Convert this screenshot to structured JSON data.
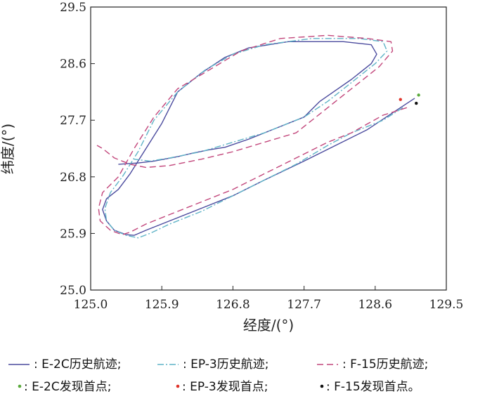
{
  "chart_data": {
    "type": "line",
    "xlabel": "经度/(°)",
    "ylabel": "纬度/(°)",
    "xlim": [
      125.0,
      129.5
    ],
    "ylim": [
      25.0,
      29.5
    ],
    "x_ticks": [
      "125.0",
      "125.9",
      "126.8",
      "127.7",
      "128.6",
      "129.5"
    ],
    "y_ticks": [
      "25.0",
      "25.9",
      "26.8",
      "27.7",
      "28.6",
      "29.5"
    ],
    "grid": false,
    "legend_position": "bottom",
    "series": [
      {
        "name": "E-2C历史航迹",
        "color": "#4b4b9e",
        "style": "solid",
        "points": [
          [
            129.1,
            28.05
          ],
          [
            128.8,
            27.8
          ],
          [
            128.5,
            27.55
          ],
          [
            128.1,
            27.3
          ],
          [
            127.7,
            27.05
          ],
          [
            127.2,
            26.75
          ],
          [
            126.8,
            26.5
          ],
          [
            126.4,
            26.3
          ],
          [
            126.0,
            26.1
          ],
          [
            125.7,
            25.95
          ],
          [
            125.55,
            25.87
          ],
          [
            125.45,
            25.88
          ],
          [
            125.3,
            25.95
          ],
          [
            125.2,
            26.1
          ],
          [
            125.15,
            26.28
          ],
          [
            125.2,
            26.45
          ],
          [
            125.35,
            26.6
          ],
          [
            125.5,
            26.85
          ],
          [
            125.7,
            27.25
          ],
          [
            125.9,
            27.65
          ],
          [
            126.1,
            28.15
          ],
          [
            126.4,
            28.45
          ],
          [
            126.7,
            28.7
          ],
          [
            127.0,
            28.85
          ],
          [
            127.5,
            28.95
          ],
          [
            128.2,
            28.95
          ],
          [
            128.55,
            28.9
          ],
          [
            128.62,
            28.75
          ],
          [
            128.55,
            28.6
          ],
          [
            128.3,
            28.35
          ],
          [
            127.9,
            28.0
          ],
          [
            127.7,
            27.75
          ],
          [
            127.3,
            27.55
          ],
          [
            127.0,
            27.4
          ],
          [
            126.7,
            27.27
          ],
          [
            126.5,
            27.23
          ],
          [
            126.3,
            27.18
          ],
          [
            126.1,
            27.12
          ],
          [
            125.8,
            27.05
          ],
          [
            125.6,
            27.02
          ],
          [
            125.35,
            27.0
          ]
        ]
      },
      {
        "name": "EP-3历史航迹",
        "color": "#5fb3c7",
        "style": "dashdot",
        "points": [
          [
            128.95,
            27.9
          ],
          [
            128.7,
            27.7
          ],
          [
            128.3,
            27.5
          ],
          [
            128.0,
            27.3
          ],
          [
            127.6,
            27.0
          ],
          [
            127.2,
            26.75
          ],
          [
            126.8,
            26.5
          ],
          [
            126.4,
            26.25
          ],
          [
            126.0,
            26.05
          ],
          [
            125.75,
            25.9
          ],
          [
            125.6,
            25.83
          ],
          [
            125.45,
            25.87
          ],
          [
            125.3,
            25.95
          ],
          [
            125.2,
            26.1
          ],
          [
            125.18,
            26.3
          ],
          [
            125.25,
            26.55
          ],
          [
            125.4,
            26.8
          ],
          [
            125.6,
            27.2
          ],
          [
            125.8,
            27.7
          ],
          [
            126.1,
            28.15
          ],
          [
            126.45,
            28.5
          ],
          [
            126.8,
            28.75
          ],
          [
            127.2,
            28.9
          ],
          [
            127.8,
            29.0
          ],
          [
            128.4,
            29.0
          ],
          [
            128.7,
            28.95
          ],
          [
            128.75,
            28.8
          ],
          [
            128.6,
            28.6
          ],
          [
            128.35,
            28.35
          ],
          [
            128.0,
            28.0
          ],
          [
            127.7,
            27.75
          ],
          [
            127.2,
            27.5
          ],
          [
            126.8,
            27.35
          ],
          [
            126.4,
            27.2
          ],
          [
            126.0,
            27.1
          ],
          [
            125.75,
            27.05
          ],
          [
            125.55,
            27.08
          ]
        ]
      },
      {
        "name": "F-15历史航迹",
        "color": "#c2467b",
        "style": "dashed",
        "points": [
          [
            129.0,
            27.9
          ],
          [
            128.7,
            27.78
          ],
          [
            128.3,
            27.5
          ],
          [
            128.0,
            27.35
          ],
          [
            127.6,
            27.1
          ],
          [
            127.2,
            26.85
          ],
          [
            126.8,
            26.6
          ],
          [
            126.4,
            26.4
          ],
          [
            126.0,
            26.2
          ],
          [
            125.7,
            26.05
          ],
          [
            125.5,
            25.92
          ],
          [
            125.4,
            25.88
          ],
          [
            125.25,
            25.95
          ],
          [
            125.12,
            26.1
          ],
          [
            125.1,
            26.3
          ],
          [
            125.15,
            26.55
          ],
          [
            125.35,
            26.8
          ],
          [
            125.55,
            27.25
          ],
          [
            125.8,
            27.75
          ],
          [
            126.1,
            28.2
          ],
          [
            126.5,
            28.5
          ],
          [
            126.9,
            28.8
          ],
          [
            127.4,
            29.0
          ],
          [
            128.0,
            29.05
          ],
          [
            128.5,
            29.0
          ],
          [
            128.8,
            28.95
          ],
          [
            128.82,
            28.8
          ],
          [
            128.65,
            28.55
          ],
          [
            128.35,
            28.25
          ],
          [
            128.0,
            27.9
          ],
          [
            127.6,
            27.5
          ],
          [
            127.2,
            27.35
          ],
          [
            126.8,
            27.2
          ],
          [
            126.4,
            27.08
          ],
          [
            126.0,
            26.98
          ],
          [
            125.7,
            26.95
          ],
          [
            125.5,
            27.0
          ],
          [
            125.3,
            27.1
          ],
          [
            125.15,
            27.25
          ],
          [
            125.08,
            27.3
          ]
        ]
      }
    ],
    "discovery_points": [
      {
        "name": "E-2C发现首点",
        "color": "#5aaa3c",
        "x": 129.15,
        "y": 28.1
      },
      {
        "name": "EP-3发现首点",
        "color": "#e0332a",
        "x": 128.92,
        "y": 28.03
      },
      {
        "name": "F-15发现首点",
        "color": "#111111",
        "x": 129.12,
        "y": 27.97
      }
    ]
  },
  "legend": {
    "row1": [
      {
        "text": ": E-2C历史航迹;",
        "style": "solid",
        "color": "#4b4b9e"
      },
      {
        "text": ": EP-3历史航迹;",
        "style": "dashdot",
        "color": "#5fb3c7"
      },
      {
        "text": ": F-15历史航迹;",
        "style": "dashed",
        "color": "#c2467b"
      }
    ],
    "row2": [
      {
        "text": ": E-2C发现首点;",
        "color": "#5aaa3c"
      },
      {
        "text": ": EP-3发现首点;",
        "color": "#e0332a"
      },
      {
        "text": ": F-15发现首点。",
        "color": "#111111"
      }
    ]
  }
}
